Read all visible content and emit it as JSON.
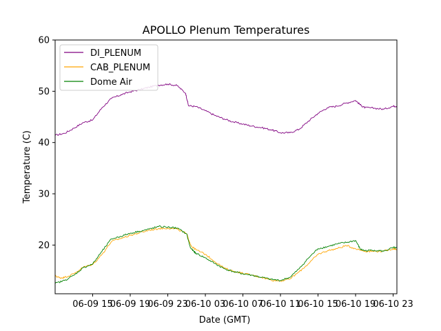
{
  "chart_data": {
    "type": "line",
    "title": "APOLLO Plenum Temperatures",
    "xlabel": "Date (GMT)",
    "ylabel": "Temperature (C)",
    "x_unit": "hours since 06-09 11:00 GMT",
    "xlim": [
      0.0,
      36.4
    ],
    "ylim": [
      10.5,
      60
    ],
    "yticks": [
      20,
      30,
      40,
      50,
      60
    ],
    "xticks": [
      {
        "x": 4,
        "label": "06-09 15"
      },
      {
        "x": 8,
        "label": "06-09 19"
      },
      {
        "x": 12,
        "label": "06-09 23"
      },
      {
        "x": 16,
        "label": "06-10 03"
      },
      {
        "x": 20,
        "label": "06-10 07"
      },
      {
        "x": 24,
        "label": "06-10 11"
      },
      {
        "x": 28,
        "label": "06-10 15"
      },
      {
        "x": 32,
        "label": "06-10 19"
      },
      {
        "x": 36,
        "label": "06-10 23"
      }
    ],
    "legend": "upper-left",
    "series": [
      {
        "name": "DI_PLENUM",
        "color": "#800080",
        "x": [
          0,
          1,
          2,
          3,
          4,
          5,
          6,
          7,
          8,
          9,
          10,
          11,
          12,
          13,
          13.9,
          14.2,
          15,
          16,
          17,
          18,
          19,
          20,
          21,
          22,
          23,
          24,
          25,
          26,
          27,
          28,
          29,
          30,
          31,
          32,
          32.6,
          33,
          34,
          35,
          36,
          36.4
        ],
        "values": [
          41.4,
          41.8,
          42.8,
          43.9,
          44.4,
          46.8,
          48.6,
          49.3,
          49.9,
          50.3,
          50.8,
          51.2,
          51.4,
          51.1,
          49.6,
          47.2,
          47.0,
          46.2,
          45.3,
          44.6,
          44.0,
          43.6,
          43.2,
          42.9,
          42.5,
          41.9,
          41.9,
          42.6,
          44.2,
          45.7,
          46.8,
          47.1,
          47.7,
          48.2,
          47.2,
          46.8,
          46.7,
          46.5,
          47.1,
          47.1
        ]
      },
      {
        "name": "CAB_PLENUM",
        "color": "#ffa500",
        "x": [
          0,
          0.5,
          1,
          2,
          3,
          4,
          5,
          6,
          7,
          8,
          9,
          10,
          11,
          12,
          13,
          14,
          14.5,
          15,
          16,
          17,
          18,
          19,
          20,
          21,
          22,
          23,
          24,
          25,
          26,
          27,
          28,
          29,
          30,
          31,
          32,
          33,
          34,
          35,
          36,
          36.4
        ],
        "values": [
          14.0,
          13.6,
          13.7,
          14.4,
          15.7,
          16.2,
          18.2,
          20.7,
          21.3,
          21.9,
          22.4,
          22.9,
          23.2,
          23.3,
          23.1,
          22.2,
          19.8,
          19.1,
          18.2,
          16.8,
          15.5,
          14.9,
          14.5,
          14.1,
          13.7,
          13.2,
          13.0,
          13.4,
          14.8,
          16.4,
          18.2,
          18.9,
          19.3,
          19.9,
          19.3,
          18.8,
          18.8,
          18.8,
          19.3,
          19.2
        ]
      },
      {
        "name": "Dome Air",
        "color": "#008000",
        "x": [
          0,
          1,
          2,
          3,
          4,
          5,
          6,
          7,
          8,
          9,
          10,
          11,
          12,
          13,
          14,
          14.4,
          14.8,
          15,
          16,
          17,
          18,
          19,
          20,
          21,
          22,
          23,
          24,
          25,
          26,
          27,
          28,
          29,
          30,
          31,
          32,
          32.5,
          33,
          34,
          35,
          36,
          36.4
        ],
        "values": [
          12.5,
          13.1,
          14.1,
          15.6,
          16.3,
          18.8,
          21.2,
          21.7,
          22.3,
          22.7,
          23.1,
          23.6,
          23.5,
          23.3,
          22.2,
          19.5,
          18.7,
          18.4,
          17.5,
          16.4,
          15.4,
          14.8,
          14.4,
          14.1,
          13.7,
          13.3,
          13.1,
          13.7,
          15.4,
          17.5,
          19.3,
          19.7,
          20.2,
          20.5,
          20.9,
          19.2,
          18.9,
          19.0,
          18.8,
          19.5,
          19.4
        ]
      }
    ]
  }
}
